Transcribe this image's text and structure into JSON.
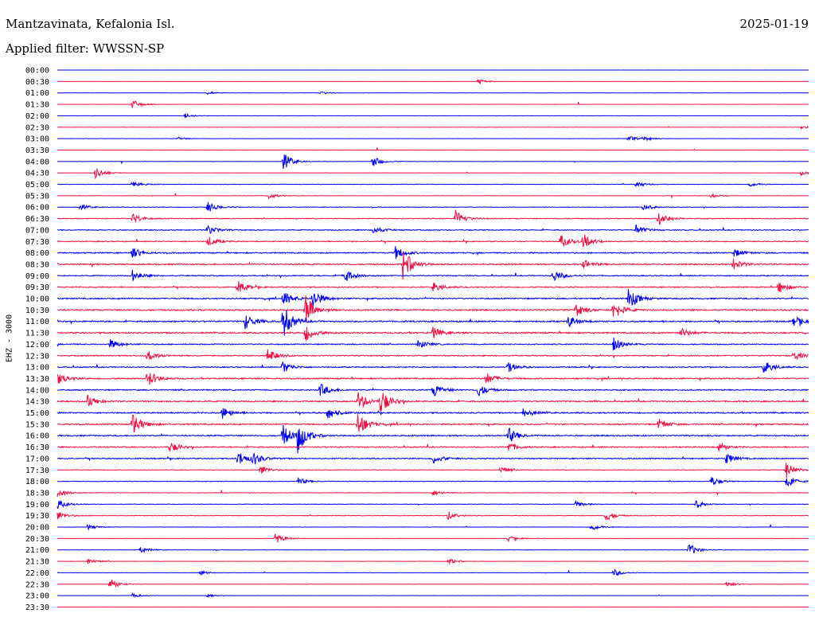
{
  "header": {
    "title": "Mantzavinata, Kefalonia Isl.",
    "date": "2025-01-19",
    "filter": "Applied filter: WWSSN-SP"
  },
  "chart_data": {
    "type": "line",
    "ylabel": "EHZ - 3000",
    "colors": [
      "#0000ee",
      "#ee1144"
    ],
    "rows": [
      {
        "label": "00:00",
        "activity": 0.05,
        "events": []
      },
      {
        "label": "00:30",
        "activity": 0.05,
        "events": [
          [
            0.56,
            0.5
          ]
        ]
      },
      {
        "label": "01:00",
        "activity": 0.08,
        "events": [
          [
            0.2,
            0.3
          ],
          [
            0.35,
            0.3
          ]
        ]
      },
      {
        "label": "01:30",
        "activity": 0.06,
        "events": [
          [
            0.1,
            0.9
          ]
        ]
      },
      {
        "label": "02:00",
        "activity": 0.1,
        "events": [
          [
            0.17,
            0.4
          ]
        ]
      },
      {
        "label": "02:30",
        "activity": 0.08,
        "events": [
          [
            0.99,
            0.3
          ]
        ]
      },
      {
        "label": "03:00",
        "activity": 0.1,
        "events": [
          [
            0.16,
            0.3
          ],
          [
            0.76,
            0.5
          ],
          [
            0.78,
            0.4
          ]
        ]
      },
      {
        "label": "03:30",
        "activity": 0.06,
        "events": []
      },
      {
        "label": "04:00",
        "activity": 0.12,
        "events": [
          [
            0.3,
            1.8
          ],
          [
            0.42,
            1.0
          ]
        ]
      },
      {
        "label": "04:30",
        "activity": 0.1,
        "events": [
          [
            0.05,
            1.2
          ],
          [
            0.99,
            0.4
          ]
        ]
      },
      {
        "label": "05:00",
        "activity": 0.18,
        "events": [
          [
            0.1,
            0.7
          ],
          [
            0.77,
            0.6
          ],
          [
            0.92,
            0.5
          ]
        ]
      },
      {
        "label": "05:30",
        "activity": 0.15,
        "events": [
          [
            0.28,
            0.6
          ],
          [
            0.87,
            0.4
          ]
        ]
      },
      {
        "label": "06:00",
        "activity": 0.25,
        "events": [
          [
            0.03,
            0.6
          ],
          [
            0.2,
            1.0
          ],
          [
            0.78,
            0.6
          ]
        ]
      },
      {
        "label": "06:30",
        "activity": 0.35,
        "events": [
          [
            0.1,
            1.0
          ],
          [
            0.53,
            1.5
          ],
          [
            0.8,
            1.5
          ]
        ]
      },
      {
        "label": "07:00",
        "activity": 0.4,
        "events": [
          [
            0.2,
            0.9
          ],
          [
            0.42,
            0.8
          ],
          [
            0.77,
            0.9
          ]
        ]
      },
      {
        "label": "07:30",
        "activity": 0.4,
        "events": [
          [
            0.2,
            1.0
          ],
          [
            0.67,
            1.3
          ],
          [
            0.7,
            1.4
          ]
        ]
      },
      {
        "label": "08:00",
        "activity": 0.5,
        "events": [
          [
            0.1,
            1.0
          ],
          [
            0.45,
            1.2
          ],
          [
            0.9,
            0.8
          ]
        ]
      },
      {
        "label": "08:30",
        "activity": 0.55,
        "events": [
          [
            0.46,
            3.0
          ],
          [
            0.7,
            0.9
          ],
          [
            0.9,
            1.0
          ]
        ]
      },
      {
        "label": "09:00",
        "activity": 0.45,
        "events": [
          [
            0.1,
            1.0
          ],
          [
            0.38,
            1.5
          ],
          [
            0.66,
            1.2
          ]
        ]
      },
      {
        "label": "09:30",
        "activity": 0.45,
        "events": [
          [
            0.24,
            1.2
          ],
          [
            0.5,
            0.9
          ],
          [
            0.96,
            1.1
          ]
        ]
      },
      {
        "label": "10:00",
        "activity": 0.55,
        "events": [
          [
            0.3,
            1.5
          ],
          [
            0.34,
            1.8
          ],
          [
            0.76,
            2.0
          ]
        ]
      },
      {
        "label": "10:30",
        "activity": 0.6,
        "events": [
          [
            0.33,
            2.8
          ],
          [
            0.69,
            1.3
          ],
          [
            0.74,
            1.8
          ]
        ]
      },
      {
        "label": "11:00",
        "activity": 0.6,
        "events": [
          [
            0.25,
            1.4
          ],
          [
            0.3,
            3.2
          ],
          [
            0.68,
            1.1
          ],
          [
            0.98,
            1.2
          ]
        ]
      },
      {
        "label": "11:30",
        "activity": 0.6,
        "events": [
          [
            0.33,
            1.6
          ],
          [
            0.5,
            1.0
          ],
          [
            0.83,
            0.9
          ]
        ]
      },
      {
        "label": "12:00",
        "activity": 0.45,
        "events": [
          [
            0.07,
            0.9
          ],
          [
            0.48,
            0.8
          ],
          [
            0.74,
            1.3
          ]
        ]
      },
      {
        "label": "12:30",
        "activity": 0.45,
        "events": [
          [
            0.12,
            1.0
          ],
          [
            0.28,
            1.2
          ],
          [
            0.98,
            0.9
          ]
        ]
      },
      {
        "label": "13:00",
        "activity": 0.45,
        "events": [
          [
            0.3,
            1.1
          ],
          [
            0.6,
            0.9
          ],
          [
            0.94,
            1.3
          ]
        ]
      },
      {
        "label": "13:30",
        "activity": 0.55,
        "events": [
          [
            0.0,
            1.2
          ],
          [
            0.12,
            1.6
          ],
          [
            0.57,
            1.1
          ]
        ]
      },
      {
        "label": "14:00",
        "activity": 0.5,
        "events": [
          [
            0.35,
            1.2
          ],
          [
            0.5,
            1.3
          ],
          [
            0.56,
            1.2
          ]
        ]
      },
      {
        "label": "14:30",
        "activity": 0.55,
        "events": [
          [
            0.04,
            1.2
          ],
          [
            0.4,
            1.8
          ],
          [
            0.43,
            2.4
          ]
        ]
      },
      {
        "label": "15:00",
        "activity": 0.55,
        "events": [
          [
            0.22,
            1.1
          ],
          [
            0.36,
            1.2
          ],
          [
            0.62,
            1.0
          ]
        ]
      },
      {
        "label": "15:30",
        "activity": 0.55,
        "events": [
          [
            0.1,
            2.2
          ],
          [
            0.4,
            2.4
          ],
          [
            0.8,
            1.0
          ]
        ]
      },
      {
        "label": "16:00",
        "activity": 0.55,
        "events": [
          [
            0.3,
            2.0
          ],
          [
            0.32,
            3.0
          ],
          [
            0.6,
            1.5
          ]
        ]
      },
      {
        "label": "16:30",
        "activity": 0.5,
        "events": [
          [
            0.15,
            1.0
          ],
          [
            0.6,
            0.9
          ],
          [
            0.88,
            0.8
          ]
        ]
      },
      {
        "label": "17:00",
        "activity": 0.45,
        "events": [
          [
            0.24,
            1.5
          ],
          [
            0.26,
            1.2
          ],
          [
            0.5,
            0.9
          ],
          [
            0.89,
            1.0
          ]
        ]
      },
      {
        "label": "17:30",
        "activity": 0.25,
        "events": [
          [
            0.27,
            0.9
          ],
          [
            0.59,
            0.6
          ],
          [
            0.97,
            1.5
          ]
        ]
      },
      {
        "label": "18:00",
        "activity": 0.25,
        "events": [
          [
            0.32,
            0.7
          ],
          [
            0.87,
            0.9
          ],
          [
            0.97,
            1.3
          ]
        ]
      },
      {
        "label": "18:30",
        "activity": 0.2,
        "events": [
          [
            0.0,
            0.8
          ],
          [
            0.5,
            0.5
          ]
        ]
      },
      {
        "label": "19:00",
        "activity": 0.2,
        "events": [
          [
            0.0,
            0.9
          ],
          [
            0.69,
            0.6
          ],
          [
            0.85,
            0.7
          ]
        ]
      },
      {
        "label": "19:30",
        "activity": 0.2,
        "events": [
          [
            0.0,
            0.8
          ],
          [
            0.52,
            0.8
          ],
          [
            0.73,
            1.0
          ]
        ]
      },
      {
        "label": "20:00",
        "activity": 0.15,
        "events": [
          [
            0.04,
            0.5
          ],
          [
            0.71,
            0.7
          ]
        ]
      },
      {
        "label": "20:30",
        "activity": 0.15,
        "events": [
          [
            0.29,
            1.0
          ],
          [
            0.6,
            0.5
          ]
        ]
      },
      {
        "label": "21:00",
        "activity": 0.15,
        "events": [
          [
            0.11,
            0.6
          ],
          [
            0.84,
            1.2
          ]
        ]
      },
      {
        "label": "21:30",
        "activity": 0.12,
        "events": [
          [
            0.04,
            0.6
          ],
          [
            0.52,
            0.6
          ]
        ]
      },
      {
        "label": "22:00",
        "activity": 0.1,
        "events": [
          [
            0.19,
            0.4
          ],
          [
            0.74,
            0.7
          ]
        ]
      },
      {
        "label": "22:30",
        "activity": 0.1,
        "events": [
          [
            0.07,
            1.1
          ],
          [
            0.89,
            0.5
          ]
        ]
      },
      {
        "label": "23:00",
        "activity": 0.08,
        "events": [
          [
            0.1,
            0.4
          ],
          [
            0.2,
            0.3
          ]
        ]
      },
      {
        "label": "23:30",
        "activity": 0.06,
        "events": []
      }
    ]
  }
}
